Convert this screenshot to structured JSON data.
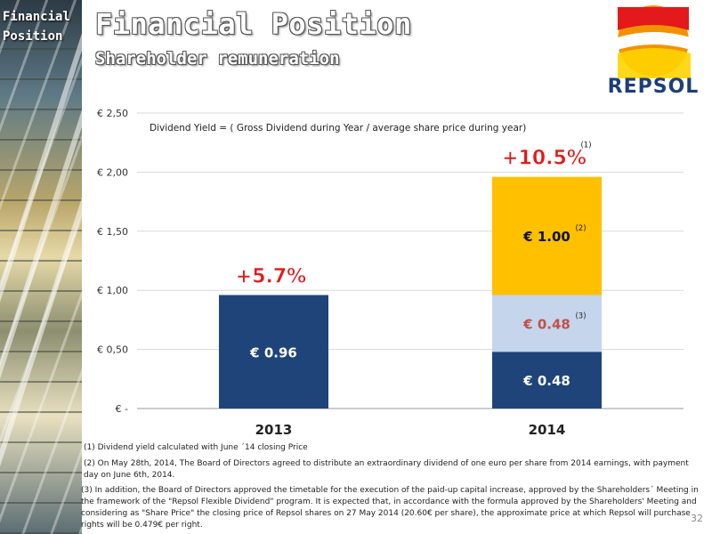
{
  "side_title": [
    "Financial",
    "Position"
  ],
  "title": "Financial Position",
  "subtitle": "Shareholder remuneration",
  "logo": {
    "text": "REPSOL",
    "colors": {
      "red": "#e3191b",
      "orange": "#f39200",
      "yellow": "#ffd400",
      "navy": "#1d3f77"
    }
  },
  "chart_data": {
    "type": "bar",
    "stacked": true,
    "annotation": "Dividend Yield = ( Gross Dividend during Year / average share price during year)",
    "categories": [
      "2013",
      "2014"
    ],
    "yticks": [
      "€ -",
      "€ 0,50",
      "€ 1,00",
      "€ 1,50",
      "€ 2,00",
      "€ 2,50"
    ],
    "ylim": [
      0,
      2.5
    ],
    "grid": true,
    "series": [
      {
        "values": [
          0.96,
          0.48
        ],
        "color": "#1f4479",
        "labels": [
          "€ 0.96",
          "€ 0.48"
        ],
        "label_color": "#ffffff",
        "superscripts": [
          "",
          ""
        ]
      },
      {
        "values": [
          0,
          0.48
        ],
        "color": "#c5d6ec",
        "labels": [
          "",
          "€ 0.48"
        ],
        "label_color": "#c0504d",
        "superscripts": [
          "",
          "(3)"
        ]
      },
      {
        "values": [
          0,
          1.0
        ],
        "color": "#ffc000",
        "labels": [
          "",
          "€ 1.00"
        ],
        "label_color": "#111111",
        "superscripts": [
          "",
          "(2)"
        ]
      }
    ],
    "yield_labels": [
      {
        "category": "2013",
        "text": "+5.7%",
        "superscript": ""
      },
      {
        "category": "2014",
        "text": "+10.5%",
        "superscript": "(1)"
      }
    ],
    "yield_color": "#e3191b"
  },
  "footnotes": [
    "(1) Dividend yield calculated with June ´14 closing Price",
    "(2) On May 28th, 2014, The Board of Directors agreed to distribute an extraordinary dividend of one euro per share from 2014 earnings, with payment day on June 6th, 2014.",
    "(3) In addition, the Board of Directors approved the timetable for the execution of the paid-up capital increase, approved by the Shareholders´ Meeting in the framework of the \"Repsol Flexible Dividend\" program. It is expected that, in accordance with the formula approved by the Shareholders' Meeting and considering as \"Share Price\" the closing price of Repsol shares on 27 May 2014 (20.60€ per share), the approximate price at which Repsol will purchase rights will be 0.479€ per right."
  ],
  "page_number": "32"
}
